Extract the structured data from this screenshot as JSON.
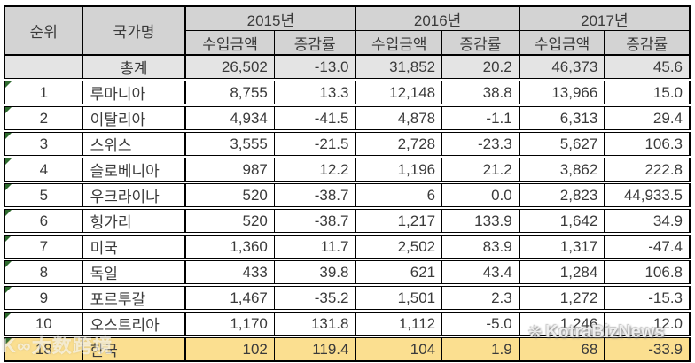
{
  "table": {
    "header": {
      "rank": "순위",
      "country": "국가명"
    },
    "year_groups": [
      {
        "year": "2015년",
        "sub_columns": [
          "수입금액",
          "증감률"
        ]
      },
      {
        "year": "2016년",
        "sub_columns": [
          "수입금액",
          "증감률"
        ]
      },
      {
        "year": "2017년",
        "sub_columns": [
          "수입금액",
          "증감률"
        ]
      }
    ],
    "rows": [
      {
        "rank": "",
        "country": "총계",
        "values": [
          "26,502",
          "-13.0",
          "31,852",
          "20.2",
          "46,373",
          "45.6"
        ],
        "style": "total",
        "error_marker": false
      },
      {
        "rank": "1",
        "country": "루마니아",
        "values": [
          "8,755",
          "13.3",
          "12,148",
          "38.8",
          "13,966",
          "15.0"
        ],
        "style": "normal",
        "error_marker": true
      },
      {
        "rank": "2",
        "country": "이탈리아",
        "values": [
          "4,934",
          "-41.5",
          "4,878",
          "-1.1",
          "6,313",
          "29.4"
        ],
        "style": "normal",
        "error_marker": true
      },
      {
        "rank": "3",
        "country": "스위스",
        "values": [
          "3,555",
          "-21.5",
          "2,728",
          "-23.3",
          "5,627",
          "106.3"
        ],
        "style": "normal",
        "error_marker": true
      },
      {
        "rank": "4",
        "country": "슬로베니아",
        "values": [
          "987",
          "12.2",
          "1,196",
          "21.2",
          "3,862",
          "222.8"
        ],
        "style": "normal",
        "error_marker": true
      },
      {
        "rank": "5",
        "country": "우크라이나",
        "values": [
          "520",
          "-38.7",
          "6",
          "0.0",
          "2,823",
          "44,933.5"
        ],
        "style": "normal",
        "error_marker": true
      },
      {
        "rank": "6",
        "country": "헝가리",
        "values": [
          "520",
          "-38.7",
          "1,217",
          "133.9",
          "1,642",
          "34.9"
        ],
        "style": "normal",
        "error_marker": true
      },
      {
        "rank": "7",
        "country": "미국",
        "values": [
          "1,360",
          "11.7",
          "2,502",
          "83.9",
          "1,317",
          "-47.4"
        ],
        "style": "normal",
        "error_marker": true
      },
      {
        "rank": "8",
        "country": "독일",
        "values": [
          "433",
          "39.8",
          "621",
          "43.4",
          "1,284",
          "106.8"
        ],
        "style": "normal",
        "error_marker": true
      },
      {
        "rank": "9",
        "country": "포르투갈",
        "values": [
          "1,467",
          "-35.2",
          "1,501",
          "2.3",
          "1,272",
          "-15.3"
        ],
        "style": "normal",
        "error_marker": true
      },
      {
        "rank": "10",
        "country": "오스트리아",
        "values": [
          "1,170",
          "131.8",
          "1,112",
          "-5.0",
          "1,246",
          "12.0"
        ],
        "style": "normal",
        "error_marker": true
      },
      {
        "rank": "18",
        "country": "한국",
        "values": [
          "102",
          "119.4",
          "104",
          "1.9",
          "68",
          "-33.9"
        ],
        "style": "highlight",
        "error_marker": true
      }
    ]
  },
  "watermarks": {
    "left_text": "K∞大数跨境",
    "right_icon": "❋",
    "right_text": "KotraBizNews"
  },
  "colors": {
    "header_bg": "#d3d3d3",
    "total_row_bg": "#e4e4e4",
    "highlight_row_bg": "#fbdf90",
    "border": "#000000",
    "text": "#3a3a3a",
    "error_marker_green": "#2e6b2e"
  },
  "chart_data": {
    "type": "table",
    "columns": [
      "순위",
      "국가명",
      "2015년 수입금액",
      "2015년 증감률",
      "2016년 수입금액",
      "2016년 증감률",
      "2017년 수입금액",
      "2017년 증감률"
    ],
    "rows": [
      [
        null,
        "총계",
        26502,
        -13.0,
        31852,
        20.2,
        46373,
        45.6
      ],
      [
        1,
        "루마니아",
        8755,
        13.3,
        12148,
        38.8,
        13966,
        15.0
      ],
      [
        2,
        "이탈리아",
        4934,
        -41.5,
        4878,
        -1.1,
        6313,
        29.4
      ],
      [
        3,
        "스위스",
        3555,
        -21.5,
        2728,
        -23.3,
        5627,
        106.3
      ],
      [
        4,
        "슬로베니아",
        987,
        12.2,
        1196,
        21.2,
        3862,
        222.8
      ],
      [
        5,
        "우크라이나",
        520,
        -38.7,
        6,
        0.0,
        2823,
        44933.5
      ],
      [
        6,
        "헝가리",
        520,
        -38.7,
        1217,
        133.9,
        1642,
        34.9
      ],
      [
        7,
        "미국",
        1360,
        11.7,
        2502,
        83.9,
        1317,
        -47.4
      ],
      [
        8,
        "독일",
        433,
        39.8,
        621,
        43.4,
        1284,
        106.8
      ],
      [
        9,
        "포르투갈",
        1467,
        -35.2,
        1501,
        2.3,
        1272,
        -15.3
      ],
      [
        10,
        "오스트리아",
        1170,
        131.8,
        1112,
        -5.0,
        1246,
        12.0
      ],
      [
        18,
        "한국",
        102,
        119.4,
        104,
        1.9,
        68,
        -33.9
      ]
    ],
    "highlighted_row": "한국 (rank 18)",
    "title": ""
  }
}
